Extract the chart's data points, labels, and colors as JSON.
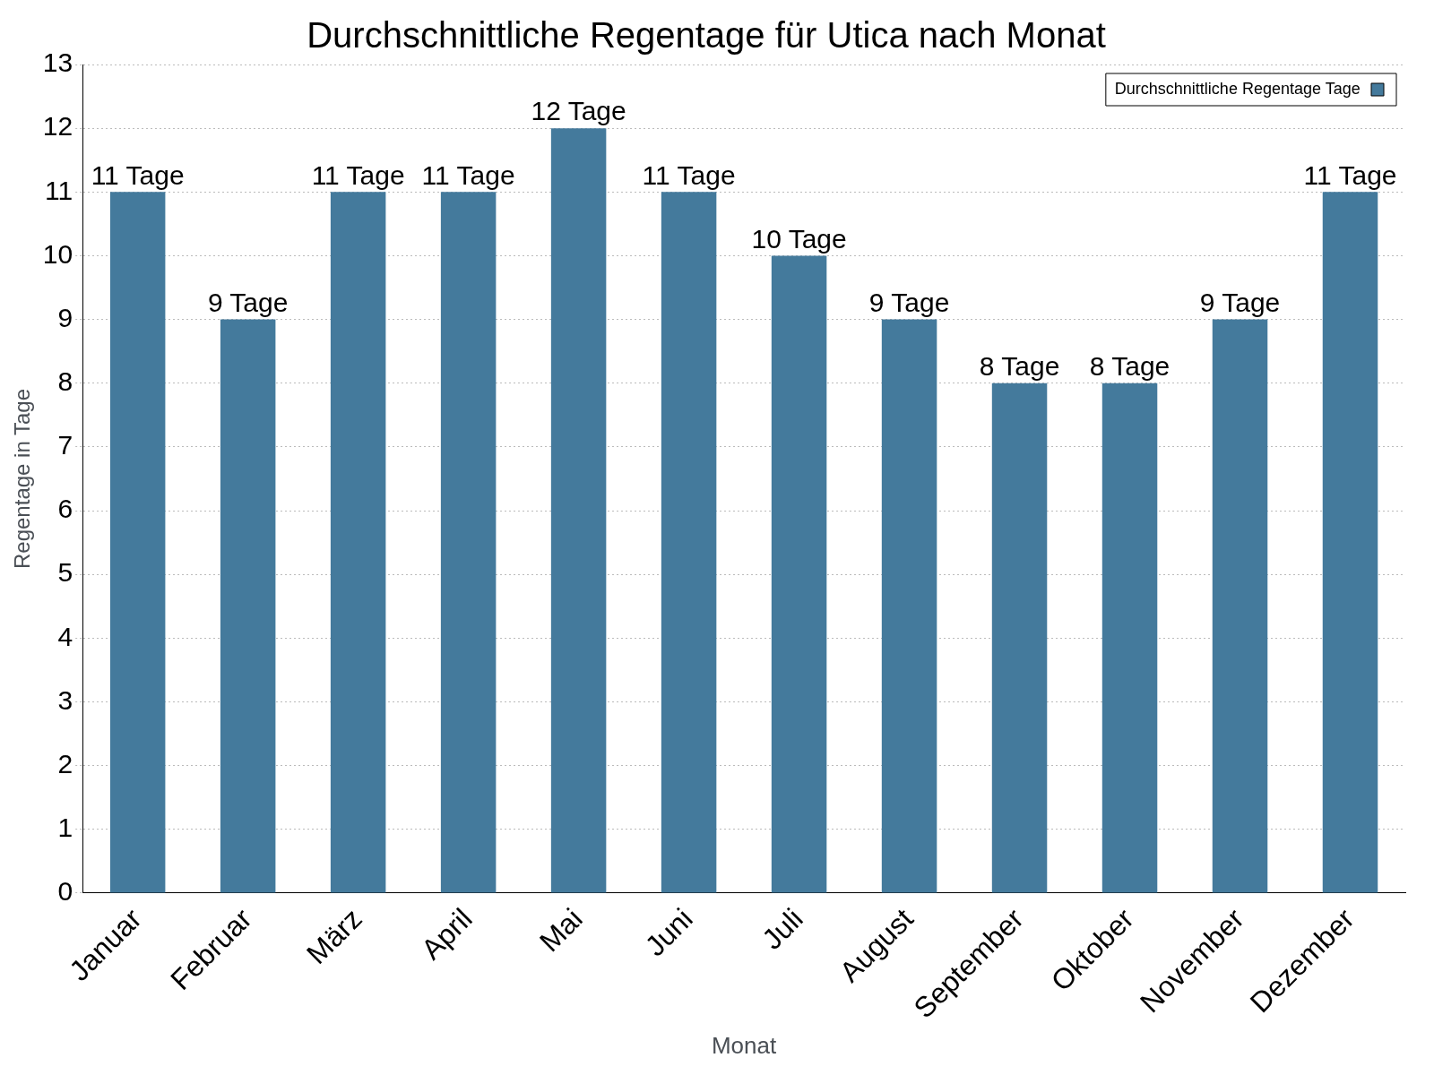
{
  "chart_data": {
    "type": "bar",
    "title": "Durchschnittliche Regentage für Utica nach Monat",
    "xlabel": "Monat",
    "ylabel": "Regentage in Tage",
    "categories": [
      "Januar",
      "Februar",
      "März",
      "April",
      "Mai",
      "Juni",
      "Juli",
      "August",
      "September",
      "Oktober",
      "November",
      "Dezember"
    ],
    "series": [
      {
        "name": "Durchschnittliche Regentage Tage",
        "color": "#447a9c",
        "values": [
          11,
          9,
          11,
          11,
          12,
          11,
          10,
          9,
          8,
          8,
          9,
          11
        ],
        "value_labels": [
          "11 Tage",
          "9 Tage",
          "11 Tage",
          "11 Tage",
          "12 Tage",
          "11 Tage",
          "10 Tage",
          "9 Tage",
          "8 Tage",
          "8 Tage",
          "9 Tage",
          "11 Tage"
        ]
      }
    ],
    "ylim": [
      0,
      13
    ],
    "yticks": [
      0,
      1,
      2,
      3,
      4,
      5,
      6,
      7,
      8,
      9,
      10,
      11,
      12,
      13
    ],
    "grid": "y",
    "legend": "top right"
  }
}
